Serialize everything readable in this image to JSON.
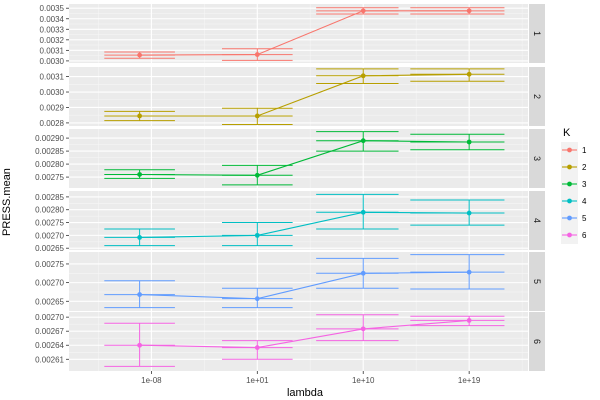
{
  "chart_data": {
    "type": "line",
    "x_axis_label": "lambda",
    "y_axis_label": "PRESS.mean",
    "x_scale": "log10",
    "x_ticks": [
      {
        "value": 1e-08,
        "label": "1e-08"
      },
      {
        "value": 10,
        "label": "1e+01"
      },
      {
        "value": 10000000000.0,
        "label": "1e+10"
      },
      {
        "value": 1e+19,
        "label": "1e+19"
      }
    ],
    "x_range": [
      1e-15,
      1e+24
    ],
    "legend": {
      "title": "K",
      "placement": "right",
      "entries": [
        "1",
        "2",
        "3",
        "4",
        "5",
        "6"
      ]
    },
    "error_bars": "vertical and horizontal, endcaps at interval limits",
    "facets": [
      {
        "strip": "1",
        "color": "#F8766D",
        "ylim": [
          0.00298,
          0.00354
        ],
        "y_ticks": [
          0.003,
          0.0031,
          0.0032,
          0.0033,
          0.0034,
          0.0035
        ],
        "y_tick_labels": [
          "0.0030",
          "0.0031",
          "0.0032",
          "0.0033",
          "0.0034",
          "0.0035"
        ],
        "points": [
          {
            "x": 1e-09,
            "y": 0.003055,
            "ylo": 0.003025,
            "yhi": 0.003085,
            "xlo": 1e-12,
            "xhi": 1e-06
          },
          {
            "x": 10.0,
            "y": 0.00306,
            "ylo": 0.003005,
            "yhi": 0.003115,
            "xlo": 0.01,
            "xhi": 10000.0
          },
          {
            "x": 10000000000.0,
            "y": 0.003475,
            "ylo": 0.003445,
            "yhi": 0.003505,
            "xlo": 1000000.0,
            "xhi": 10000000000000.0
          },
          {
            "x": 1e+19,
            "y": 0.003475,
            "ylo": 0.003445,
            "yhi": 0.003505,
            "xlo": 100000000000000.0,
            "xhi": 1e+22
          }
        ]
      },
      {
        "strip": "2",
        "color": "#B79F00",
        "ylim": [
          0.00278,
          0.003162
        ],
        "y_ticks": [
          0.0028,
          0.0029,
          0.003,
          0.0031
        ],
        "y_tick_labels": [
          "0.0028",
          "0.0029",
          "0.0030",
          "0.0031"
        ],
        "points": [
          {
            "x": 1e-09,
            "y": 0.002845,
            "ylo": 0.002815,
            "yhi": 0.002875,
            "xlo": 1e-12,
            "xhi": 1e-06
          },
          {
            "x": 10.0,
            "y": 0.002845,
            "ylo": 0.00279,
            "yhi": 0.002895,
            "xlo": 0.01,
            "xhi": 10000.0
          },
          {
            "x": 10000000000.0,
            "y": 0.003105,
            "ylo": 0.003055,
            "yhi": 0.00315,
            "xlo": 1000000.0,
            "xhi": 10000000000000.0
          },
          {
            "x": 1e+19,
            "y": 0.003115,
            "ylo": 0.00307,
            "yhi": 0.00315,
            "xlo": 100000000000000.0,
            "xhi": 1e+22
          }
        ]
      },
      {
        "strip": "3",
        "color": "#00BA38",
        "ylim": [
          0.002708,
          0.002935
        ],
        "y_ticks": [
          0.00275,
          0.0028,
          0.00285,
          0.0029
        ],
        "y_tick_labels": [
          "0.00275",
          "0.00280",
          "0.00285",
          "0.00290"
        ],
        "points": [
          {
            "x": 1e-09,
            "y": 0.00276,
            "ylo": 0.002745,
            "yhi": 0.002778,
            "xlo": 1e-12,
            "xhi": 1e-06
          },
          {
            "x": 10.0,
            "y": 0.002757,
            "ylo": 0.00272,
            "yhi": 0.002795,
            "xlo": 0.01,
            "xhi": 10000.0
          },
          {
            "x": 10000000000.0,
            "y": 0.00289,
            "ylo": 0.00285,
            "yhi": 0.002925,
            "xlo": 1000000.0,
            "xhi": 10000000000000.0
          },
          {
            "x": 1e+19,
            "y": 0.002885,
            "ylo": 0.002855,
            "yhi": 0.002915,
            "xlo": 100000000000000.0,
            "xhi": 1e+22
          }
        ]
      },
      {
        "strip": "4",
        "color": "#00BFC4",
        "ylim": [
          0.002643,
          0.002873
        ],
        "y_ticks": [
          0.00265,
          0.0027,
          0.00275,
          0.0028,
          0.00285
        ],
        "y_tick_labels": [
          "0.00265",
          "0.00270",
          "0.00275",
          "0.00280",
          "0.00285"
        ],
        "points": [
          {
            "x": 1e-09,
            "y": 0.002692,
            "ylo": 0.00266,
            "yhi": 0.002725,
            "xlo": 1e-12,
            "xhi": 1e-06
          },
          {
            "x": 10.0,
            "y": 0.0027,
            "ylo": 0.00266,
            "yhi": 0.00275,
            "xlo": 0.01,
            "xhi": 10000.0
          },
          {
            "x": 10000000000.0,
            "y": 0.00279,
            "ylo": 0.002725,
            "yhi": 0.00286,
            "xlo": 1000000.0,
            "xhi": 10000000000000.0
          },
          {
            "x": 1e+19,
            "y": 0.002787,
            "ylo": 0.00274,
            "yhi": 0.002838,
            "xlo": 100000000000000.0,
            "xhi": 1e+22
          }
        ]
      },
      {
        "strip": "5",
        "color": "#619CFF",
        "ylim": [
          0.002624,
          0.002782
        ],
        "y_ticks": [
          0.00265,
          0.0027,
          0.00275
        ],
        "y_tick_labels": [
          "0.00265",
          "0.00270",
          "0.00275"
        ],
        "points": [
          {
            "x": 1e-09,
            "y": 0.002668,
            "ylo": 0.002633,
            "yhi": 0.002705,
            "xlo": 1e-12,
            "xhi": 1e-06
          },
          {
            "x": 10.0,
            "y": 0.002657,
            "ylo": 0.002633,
            "yhi": 0.002685,
            "xlo": 0.01,
            "xhi": 10000.0
          },
          {
            "x": 10000000000.0,
            "y": 0.002725,
            "ylo": 0.002685,
            "yhi": 0.002765,
            "xlo": 1000000.0,
            "xhi": 10000000000000.0
          },
          {
            "x": 1e+19,
            "y": 0.002728,
            "ylo": 0.002683,
            "yhi": 0.002775,
            "xlo": 100000000000000.0,
            "xhi": 1e+22
          }
        ]
      },
      {
        "strip": "6",
        "color": "#F564E3",
        "ylim": [
          0.002585,
          0.002711
        ],
        "y_ticks": [
          0.00261,
          0.00264,
          0.00267,
          0.0027
        ],
        "y_tick_labels": [
          "0.00261",
          "0.00264",
          "0.00267",
          "0.00270"
        ],
        "points": [
          {
            "x": 1e-09,
            "y": 0.00264,
            "ylo": 0.002595,
            "yhi": 0.002687,
            "xlo": 1e-12,
            "xhi": 1e-06
          },
          {
            "x": 10.0,
            "y": 0.002635,
            "ylo": 0.00261,
            "yhi": 0.00265,
            "xlo": 0.01,
            "xhi": 10000.0
          },
          {
            "x": 10000000000.0,
            "y": 0.002675,
            "ylo": 0.00265,
            "yhi": 0.002705,
            "xlo": 1000000.0,
            "xhi": 10000000000000.0
          },
          {
            "x": 1e+19,
            "y": 0.002693,
            "ylo": 0.002682,
            "yhi": 0.002702,
            "xlo": 100000000000000.0,
            "xhi": 1e+22
          }
        ]
      }
    ]
  }
}
